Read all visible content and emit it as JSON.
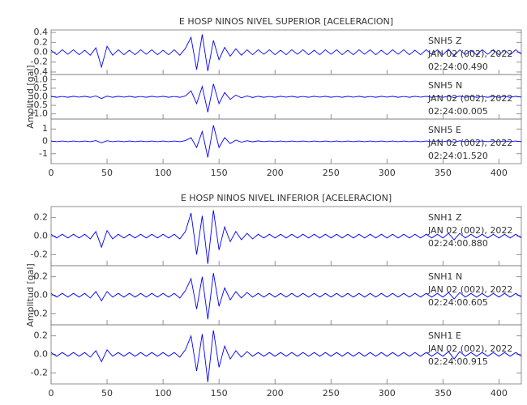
{
  "chart_data": [
    {
      "type": "line",
      "title": "E HOSP NINOS NIVEL SUPERIOR [ACELERACION]",
      "y_label": "Amplitud [gal]",
      "xlim": [
        0,
        420
      ],
      "xticks": [
        0,
        50,
        100,
        150,
        200,
        250,
        300,
        350,
        400
      ],
      "x": [
        0,
        5,
        10,
        15,
        20,
        25,
        30,
        35,
        40,
        45,
        50,
        55,
        60,
        65,
        70,
        75,
        80,
        85,
        90,
        95,
        100,
        105,
        110,
        115,
        120,
        125,
        130,
        135,
        140,
        145,
        150,
        155,
        160,
        165,
        170,
        175,
        180,
        185,
        190,
        195,
        200,
        205,
        210,
        215,
        220,
        225,
        230,
        235,
        240,
        245,
        250,
        255,
        260,
        265,
        270,
        275,
        280,
        285,
        290,
        295,
        300,
        305,
        310,
        315,
        320,
        325,
        330,
        335,
        340,
        345,
        350,
        355,
        360,
        365,
        370,
        375,
        380,
        385,
        390,
        395,
        400,
        405,
        410,
        415,
        420
      ],
      "panels": [
        {
          "annotation": [
            "SNH5   Z",
            "JAN 02 (002), 2022",
            "02:24:00.490"
          ],
          "color": "#0000ff",
          "ylim": [
            -0.45,
            0.45
          ],
          "yticks": [
            -0.4,
            -0.2,
            {
              "value": 0,
              "label": "0.0"
            },
            0.2,
            0.4
          ],
          "values": [
            0.04,
            -0.05,
            0.05,
            -0.04,
            0.05,
            -0.05,
            0.04,
            -0.06,
            0.09,
            -0.3,
            0.12,
            -0.06,
            0.05,
            -0.05,
            0.04,
            -0.05,
            0.05,
            -0.04,
            0.05,
            -0.05,
            0.04,
            -0.05,
            0.05,
            -0.06,
            0.08,
            0.3,
            -0.35,
            0.36,
            -0.38,
            0.24,
            -0.15,
            0.1,
            -0.08,
            0.07,
            -0.06,
            0.05,
            -0.05,
            0.05,
            -0.04,
            0.05,
            -0.05,
            0.04,
            -0.05,
            0.05,
            -0.04,
            0.05,
            -0.05,
            0.04,
            -0.05,
            0.05,
            -0.04,
            0.05,
            -0.05,
            0.04,
            -0.05,
            0.05,
            -0.04,
            0.05,
            -0.05,
            0.04,
            -0.05,
            0.05,
            -0.04,
            0.05,
            -0.05,
            0.04,
            -0.05,
            0.05,
            -0.04,
            0.05,
            -0.05,
            0.06,
            -0.07,
            0.05,
            -0.05,
            0.04,
            -0.05,
            0.05,
            -0.04,
            0.05,
            -0.05,
            0.04,
            -0.05,
            0.05,
            -0.04
          ]
        },
        {
          "annotation": [
            "SNH5   N",
            "JAN 02 (002), 2022",
            "02:24:00.005"
          ],
          "color": "#0000ff",
          "ylim": [
            -1.3,
            1.3
          ],
          "yticks": [
            {
              "value": -1,
              "label": "-1.0"
            },
            -0.5,
            {
              "value": 0,
              "label": "0.0"
            },
            0.5,
            {
              "value": 1,
              "label": "1.0"
            }
          ],
          "values": [
            0.03,
            -0.03,
            0.02,
            -0.03,
            0.03,
            -0.02,
            0.03,
            -0.03,
            0.05,
            -0.1,
            0.04,
            -0.03,
            0.03,
            -0.02,
            0.03,
            -0.03,
            0.02,
            -0.03,
            0.03,
            -0.02,
            0.03,
            -0.03,
            0.02,
            -0.03,
            0.05,
            0.35,
            -0.4,
            0.6,
            -0.9,
            0.75,
            -0.4,
            0.25,
            -0.15,
            0.1,
            -0.06,
            0.05,
            -0.04,
            0.03,
            -0.03,
            0.02,
            -0.03,
            0.03,
            -0.02,
            0.03,
            -0.03,
            0.02,
            -0.03,
            0.03,
            -0.02,
            0.03,
            -0.03,
            0.02,
            -0.03,
            0.03,
            -0.02,
            0.03,
            -0.03,
            0.02,
            -0.03,
            0.03,
            -0.02,
            0.03,
            -0.03,
            0.02,
            -0.03,
            0.03,
            -0.02,
            0.03,
            -0.03,
            0.02,
            -0.03,
            0.04,
            -0.05,
            0.04,
            -0.03,
            0.03,
            -0.03,
            0.02,
            -0.03,
            0.03,
            -0.03,
            0.02,
            -0.03,
            0.03,
            -0.02
          ]
        },
        {
          "annotation": [
            "SNH5   E",
            "JAN 02 (002), 2022",
            "02:24:01.520"
          ],
          "color": "#0000ff",
          "ylim": [
            -1.8,
            1.8
          ],
          "yticks": [
            -1,
            0,
            1
          ],
          "values": [
            0.03,
            -0.03,
            0.03,
            -0.03,
            0.03,
            -0.03,
            0.03,
            -0.03,
            0.06,
            -0.12,
            0.05,
            -0.03,
            0.03,
            -0.03,
            0.03,
            -0.03,
            0.03,
            -0.03,
            0.03,
            -0.03,
            0.03,
            -0.03,
            0.03,
            -0.03,
            0.06,
            0.3,
            -0.5,
            0.8,
            -1.3,
            1.3,
            -0.5,
            0.3,
            -0.18,
            0.1,
            -0.07,
            0.05,
            -0.04,
            0.04,
            -0.03,
            0.03,
            -0.03,
            0.03,
            -0.03,
            0.03,
            -0.03,
            0.03,
            -0.03,
            0.03,
            -0.03,
            0.03,
            -0.03,
            0.03,
            -0.03,
            0.03,
            -0.03,
            0.03,
            -0.03,
            0.03,
            -0.03,
            0.03,
            -0.03,
            0.03,
            -0.03,
            0.03,
            -0.03,
            0.03,
            -0.03,
            0.03,
            -0.03,
            0.03,
            -0.03,
            0.04,
            -0.06,
            0.04,
            -0.03,
            0.03,
            -0.03,
            0.03,
            -0.03,
            0.03,
            -0.03,
            0.03,
            -0.03,
            0.03,
            -0.03
          ]
        }
      ]
    },
    {
      "type": "line",
      "title": "E HOSP NINOS NIVEL INFERIOR [ACELERACION]",
      "y_label": "Amplitud [gal]",
      "xlim": [
        0,
        420
      ],
      "xticks": [
        0,
        50,
        100,
        150,
        200,
        250,
        300,
        350,
        400
      ],
      "x": [
        0,
        5,
        10,
        15,
        20,
        25,
        30,
        35,
        40,
        45,
        50,
        55,
        60,
        65,
        70,
        75,
        80,
        85,
        90,
        95,
        100,
        105,
        110,
        115,
        120,
        125,
        130,
        135,
        140,
        145,
        150,
        155,
        160,
        165,
        170,
        175,
        180,
        185,
        190,
        195,
        200,
        205,
        210,
        215,
        220,
        225,
        230,
        235,
        240,
        245,
        250,
        255,
        260,
        265,
        270,
        275,
        280,
        285,
        290,
        295,
        300,
        305,
        310,
        315,
        320,
        325,
        330,
        335,
        340,
        345,
        350,
        355,
        360,
        365,
        370,
        375,
        380,
        385,
        390,
        395,
        400,
        405,
        410,
        415,
        420
      ],
      "panels": [
        {
          "annotation": [
            "SNH1   Z",
            "JAN 02 (002), 2022",
            "02:24:00.880"
          ],
          "color": "#0000ff",
          "ylim": [
            -0.32,
            0.32
          ],
          "yticks": [
            -0.2,
            {
              "value": 0,
              "label": "0.0"
            },
            0.2
          ],
          "values": [
            0.02,
            -0.02,
            0.02,
            -0.02,
            0.02,
            -0.02,
            0.02,
            -0.03,
            0.05,
            -0.12,
            0.06,
            -0.03,
            0.02,
            -0.02,
            0.02,
            -0.02,
            0.02,
            -0.02,
            0.02,
            -0.02,
            0.02,
            -0.02,
            0.02,
            -0.03,
            0.05,
            0.25,
            -0.2,
            0.22,
            -0.3,
            0.28,
            -0.15,
            0.1,
            -0.06,
            0.05,
            -0.04,
            0.03,
            -0.03,
            0.02,
            -0.02,
            0.02,
            -0.02,
            0.02,
            -0.02,
            0.02,
            -0.02,
            0.02,
            -0.02,
            0.02,
            -0.02,
            0.02,
            -0.02,
            0.02,
            -0.02,
            0.02,
            -0.02,
            0.02,
            -0.02,
            0.02,
            -0.02,
            0.02,
            -0.02,
            0.02,
            -0.02,
            0.02,
            -0.02,
            0.02,
            -0.02,
            0.02,
            -0.02,
            0.02,
            -0.02,
            0.03,
            -0.04,
            0.03,
            -0.02,
            0.02,
            -0.02,
            0.02,
            -0.02,
            0.02,
            -0.02,
            0.02,
            -0.02,
            0.02,
            -0.02
          ]
        },
        {
          "annotation": [
            "SNH1   N",
            "JAN 02 (002), 2022",
            "02:24:00.605"
          ],
          "color": "#0000ff",
          "ylim": [
            -0.32,
            0.32
          ],
          "yticks": [
            -0.2,
            {
              "value": 0,
              "label": "0.0"
            },
            0.2
          ],
          "values": [
            0.02,
            -0.02,
            0.02,
            -0.02,
            0.02,
            -0.02,
            0.02,
            -0.03,
            0.04,
            -0.06,
            0.04,
            -0.02,
            0.02,
            -0.02,
            0.02,
            -0.02,
            0.02,
            -0.02,
            0.02,
            -0.02,
            0.02,
            -0.02,
            0.02,
            -0.03,
            0.05,
            0.18,
            -0.15,
            0.2,
            -0.26,
            0.24,
            -0.12,
            0.08,
            -0.05,
            0.04,
            -0.03,
            0.03,
            -0.02,
            0.02,
            -0.02,
            0.02,
            -0.02,
            0.02,
            -0.02,
            0.02,
            -0.02,
            0.02,
            -0.02,
            0.02,
            -0.02,
            0.02,
            -0.02,
            0.02,
            -0.02,
            0.02,
            -0.02,
            0.02,
            -0.02,
            0.02,
            -0.02,
            0.02,
            -0.02,
            0.02,
            -0.02,
            0.02,
            -0.02,
            0.02,
            -0.02,
            0.02,
            -0.02,
            0.02,
            -0.02,
            0.03,
            -0.04,
            0.03,
            -0.02,
            0.02,
            -0.02,
            0.02,
            -0.02,
            0.02,
            -0.02,
            0.02,
            -0.02,
            0.02,
            -0.02
          ]
        },
        {
          "annotation": [
            "SNH1   E",
            "JAN 02 (002), 2022",
            "02:24:00.915"
          ],
          "color": "#0000ff",
          "ylim": [
            -0.32,
            0.32
          ],
          "yticks": [
            -0.2,
            {
              "value": 0,
              "label": "0.0"
            },
            0.2
          ],
          "values": [
            0.02,
            -0.02,
            0.02,
            -0.02,
            0.02,
            -0.02,
            0.02,
            -0.03,
            0.04,
            -0.08,
            0.05,
            -0.02,
            0.02,
            -0.02,
            0.02,
            -0.02,
            0.02,
            -0.02,
            0.02,
            -0.02,
            0.02,
            -0.02,
            0.02,
            -0.03,
            0.05,
            0.2,
            -0.18,
            0.22,
            -0.3,
            0.26,
            -0.14,
            0.09,
            -0.05,
            0.04,
            -0.03,
            0.03,
            -0.02,
            0.02,
            -0.02,
            0.02,
            -0.02,
            0.02,
            -0.02,
            0.02,
            -0.02,
            0.02,
            -0.02,
            0.02,
            -0.02,
            0.02,
            -0.02,
            0.02,
            -0.02,
            0.02,
            -0.02,
            0.02,
            -0.02,
            0.02,
            -0.02,
            0.02,
            -0.02,
            0.02,
            -0.02,
            0.02,
            -0.02,
            0.02,
            -0.02,
            0.02,
            -0.02,
            0.02,
            -0.02,
            0.03,
            -0.05,
            0.03,
            -0.02,
            0.02,
            -0.02,
            0.02,
            -0.02,
            0.02,
            -0.02,
            0.02,
            -0.02,
            0.02,
            -0.02
          ]
        }
      ]
    }
  ]
}
